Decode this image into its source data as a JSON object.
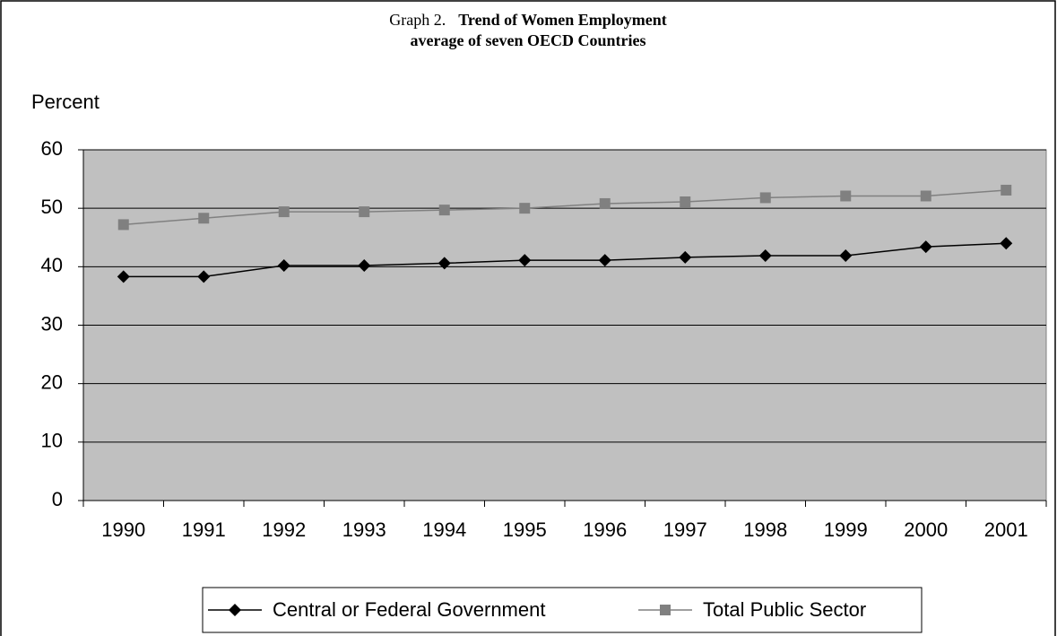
{
  "chart_data": {
    "type": "line",
    "label": "Graph 2.",
    "title": "Trend of Women Employment",
    "subtitle": "average of seven OECD Countries",
    "y_label": "Percent",
    "categories": [
      "1990",
      "1991",
      "1992",
      "1993",
      "1994",
      "1995",
      "1996",
      "1997",
      "1998",
      "1999",
      "2000",
      "2001"
    ],
    "series": [
      {
        "name": "Central or Federal Government",
        "color": "#000000",
        "marker": "diamond",
        "values": [
          38.3,
          38.3,
          40.2,
          40.2,
          40.6,
          41.1,
          41.1,
          41.6,
          41.9,
          41.9,
          43.4,
          44.0
        ]
      },
      {
        "name": "Total Public Sector",
        "color": "#808080",
        "marker": "square",
        "values": [
          47.2,
          48.3,
          49.4,
          49.4,
          49.7,
          50.0,
          50.8,
          51.1,
          51.8,
          52.1,
          52.1,
          53.1
        ]
      }
    ],
    "ylim": [
      0,
      60
    ],
    "yticks": [
      0,
      10,
      20,
      30,
      40,
      50,
      60
    ],
    "grid": true,
    "legend": "bottom"
  }
}
